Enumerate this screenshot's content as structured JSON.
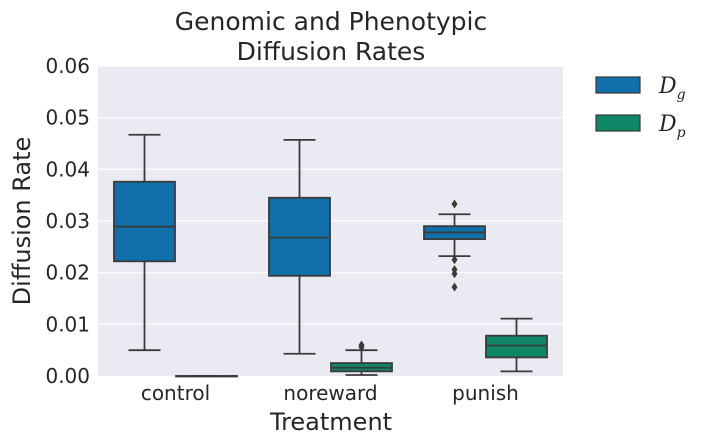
{
  "chart_data": {
    "type": "box",
    "title_lines": [
      "Genomic and Phenotypic",
      "Diffusion Rates"
    ],
    "xlabel": "Treatment",
    "ylabel": "Diffusion Rate",
    "categories": [
      "control",
      "noreward",
      "punish"
    ],
    "ylim": [
      0,
      0.06
    ],
    "yticks": [
      "0.00",
      "0.01",
      "0.02",
      "0.03",
      "0.04",
      "0.05",
      "0.06"
    ],
    "ytick_values": [
      0,
      0.01,
      0.02,
      0.03,
      0.04,
      0.05,
      0.06
    ],
    "grid": true,
    "legend_position": "outside-right",
    "series": [
      {
        "name": "D",
        "subscript": "g",
        "color": "#1170aa",
        "boxes": [
          {
            "category": "control",
            "whisker_low": 0.005,
            "q1": 0.0222,
            "median": 0.0289,
            "q3": 0.0376,
            "whisker_high": 0.0467,
            "outliers": []
          },
          {
            "category": "noreward",
            "whisker_low": 0.0043,
            "q1": 0.0194,
            "median": 0.0268,
            "q3": 0.0345,
            "whisker_high": 0.0457,
            "outliers": []
          },
          {
            "category": "punish",
            "whisker_low": 0.0232,
            "q1": 0.0265,
            "median": 0.0278,
            "q3": 0.029,
            "whisker_high": 0.0313,
            "outliers": [
              0.0333,
              0.0225,
              0.0206,
              0.0198,
              0.0172
            ]
          }
        ]
      },
      {
        "name": "D",
        "subscript": "p",
        "color": "#0f8767",
        "boxes": [
          {
            "category": "control",
            "whisker_low": 0,
            "q1": 0,
            "median": 0,
            "q3": 0,
            "whisker_high": 0,
            "outliers": []
          },
          {
            "category": "noreward",
            "whisker_low": 0.0002,
            "q1": 0.0009,
            "median": 0.0016,
            "q3": 0.0025,
            "whisker_high": 0.005,
            "outliers": [
              0.006,
              0.0056
            ]
          },
          {
            "category": "punish",
            "whisker_low": 0.0009,
            "q1": 0.0036,
            "median": 0.0059,
            "q3": 0.0078,
            "whisker_high": 0.0111,
            "outliers": []
          }
        ]
      }
    ]
  }
}
